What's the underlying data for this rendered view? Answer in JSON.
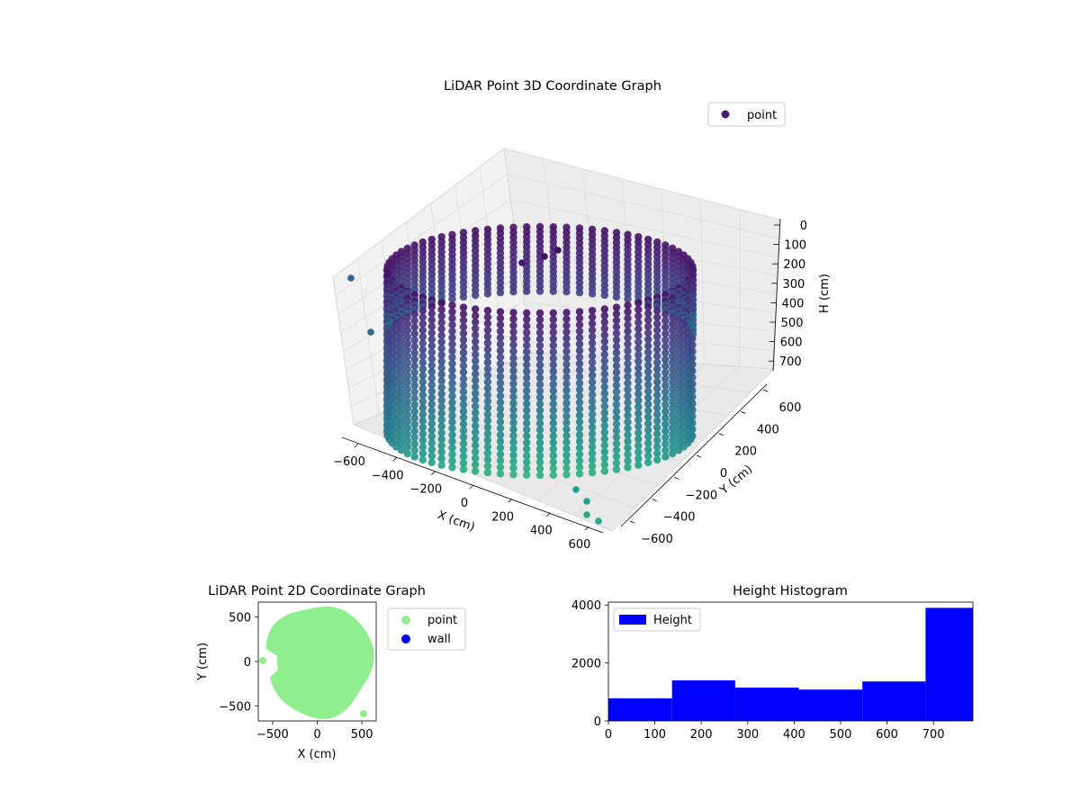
{
  "chart_data": [
    {
      "type": "scatter",
      "projection": "3d",
      "title": "LiDAR Point 3D Coordinate Graph",
      "xlabel": "X (cm)",
      "ylabel": "Y (cm)",
      "zlabel": "H (cm)",
      "xlim": [
        -650,
        650
      ],
      "ylim": [
        -650,
        650
      ],
      "zlim": [
        0,
        790
      ],
      "z_inverted": true,
      "xticks": [
        "−600",
        "−400",
        "−200",
        "0",
        "200",
        "400",
        "600"
      ],
      "yticks": [
        "−600",
        "−400",
        "−200",
        "0",
        "200",
        "400",
        "600"
      ],
      "zticks": [
        "0",
        "100",
        "200",
        "300",
        "400",
        "500",
        "600",
        "700"
      ],
      "legend": {
        "position": "upper-right",
        "entries": [
          {
            "label": "point",
            "color": "#4a1c6f"
          }
        ]
      },
      "colormap": "viridis",
      "grid": true,
      "description_values": {
        "ring_radius_cm": 560,
        "height_range_cm": [
          0,
          780
        ]
      }
    },
    {
      "type": "scatter",
      "title": "LiDAR Point 2D Coordinate Graph",
      "xlabel": "X (cm)",
      "ylabel": "Y (cm)",
      "xlim": [
        -660,
        660
      ],
      "ylim": [
        -670,
        670
      ],
      "xticks": [
        "−500",
        "0",
        "500"
      ],
      "yticks": [
        "500",
        "0",
        "−500"
      ],
      "legend": {
        "position": "outside-right",
        "entries": [
          {
            "label": "point",
            "color": "#90ee90"
          },
          {
            "label": "wall",
            "color": "#0000ff"
          }
        ]
      },
      "series": [
        {
          "name": "point",
          "color": "#90ee90",
          "shape": "filled disk, radius ~590 cm"
        },
        {
          "name": "wall",
          "color": "#0000ff",
          "points": []
        }
      ]
    },
    {
      "type": "bar",
      "subtype": "histogram",
      "title": "Height Histogram",
      "xlabel": "",
      "ylabel": "",
      "xlim": [
        0,
        785
      ],
      "ylim": [
        0,
        4100
      ],
      "xticks": [
        "0",
        "100",
        "200",
        "300",
        "400",
        "500",
        "600",
        "700"
      ],
      "yticks": [
        "0",
        "2000",
        "4000"
      ],
      "legend": {
        "position": "upper-left",
        "entries": [
          {
            "label": "Height",
            "color": "#0000ff"
          }
        ]
      },
      "bin_edges": [
        0,
        137,
        273,
        410,
        547,
        683,
        785
      ],
      "values": [
        780,
        1400,
        1150,
        1080,
        1360,
        3900
      ],
      "color": "#0000ff"
    }
  ]
}
